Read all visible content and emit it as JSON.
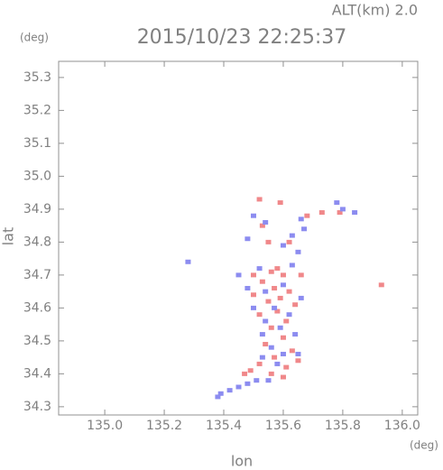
{
  "chart_data": {
    "type": "scatter",
    "title": "2015/10/23 22:25:37",
    "subtitle": "ALT(km) 2.0",
    "y_unit": "(deg)",
    "x_unit": "(deg)",
    "xlabel": "lon",
    "ylabel": "lat",
    "xlim": [
      134.845,
      136.052
    ],
    "ylim": [
      34.275,
      35.349
    ],
    "xticks": [
      {
        "value": 135,
        "label": "135.0"
      },
      135.2,
      135.4,
      135.6,
      135.8,
      {
        "value": 136,
        "label": "136.0"
      }
    ],
    "yticks": [
      34.3,
      34.4,
      34.5,
      34.6,
      34.7,
      34.8,
      34.9,
      {
        "value": 35,
        "label": "35.0"
      },
      35.1,
      35.2,
      35.3
    ],
    "series": [
      {
        "color": "#f0888a",
        "x": [
          135.52,
          135.59,
          135.68,
          135.73,
          135.55,
          135.62,
          135.58,
          135.56,
          135.6,
          135.53,
          135.57,
          135.62,
          135.5,
          135.55,
          135.64,
          135.58,
          135.52,
          135.61,
          135.56,
          135.6,
          135.54,
          135.63,
          135.57,
          135.52,
          135.61,
          135.65,
          135.49,
          135.56,
          135.47,
          135.93,
          135.79,
          135.53,
          135.66,
          135.5,
          135.59,
          135.6
        ],
        "values": [
          34.93,
          34.92,
          34.88,
          34.89,
          34.8,
          34.8,
          34.72,
          34.71,
          34.7,
          34.68,
          34.66,
          34.65,
          34.64,
          34.62,
          34.61,
          34.59,
          34.58,
          34.56,
          34.54,
          34.51,
          34.49,
          34.47,
          34.45,
          34.43,
          34.42,
          34.44,
          34.41,
          34.4,
          34.4,
          34.67,
          34.89,
          34.85,
          34.7,
          34.7,
          34.63,
          34.39
        ]
      },
      {
        "color": "#8c8cf0",
        "x": [
          135.78,
          135.8,
          135.66,
          135.5,
          135.54,
          135.63,
          135.67,
          135.6,
          135.48,
          135.65,
          135.52,
          135.63,
          135.45,
          135.48,
          135.54,
          135.6,
          135.66,
          135.5,
          135.57,
          135.62,
          135.54,
          135.59,
          135.53,
          135.64,
          135.56,
          135.6,
          135.53,
          135.58,
          135.65,
          135.51,
          135.45,
          135.42,
          135.39,
          135.38,
          135.48,
          135.55,
          135.28,
          135.84
        ],
        "values": [
          34.92,
          34.9,
          34.87,
          34.88,
          34.86,
          34.82,
          34.84,
          34.79,
          34.81,
          34.77,
          34.72,
          34.73,
          34.7,
          34.66,
          34.65,
          34.67,
          34.63,
          34.6,
          34.6,
          34.58,
          34.56,
          34.54,
          34.52,
          34.52,
          34.48,
          34.46,
          34.45,
          34.43,
          34.46,
          34.38,
          34.36,
          34.35,
          34.34,
          34.33,
          34.37,
          34.38,
          34.74,
          34.89
        ]
      }
    ]
  }
}
